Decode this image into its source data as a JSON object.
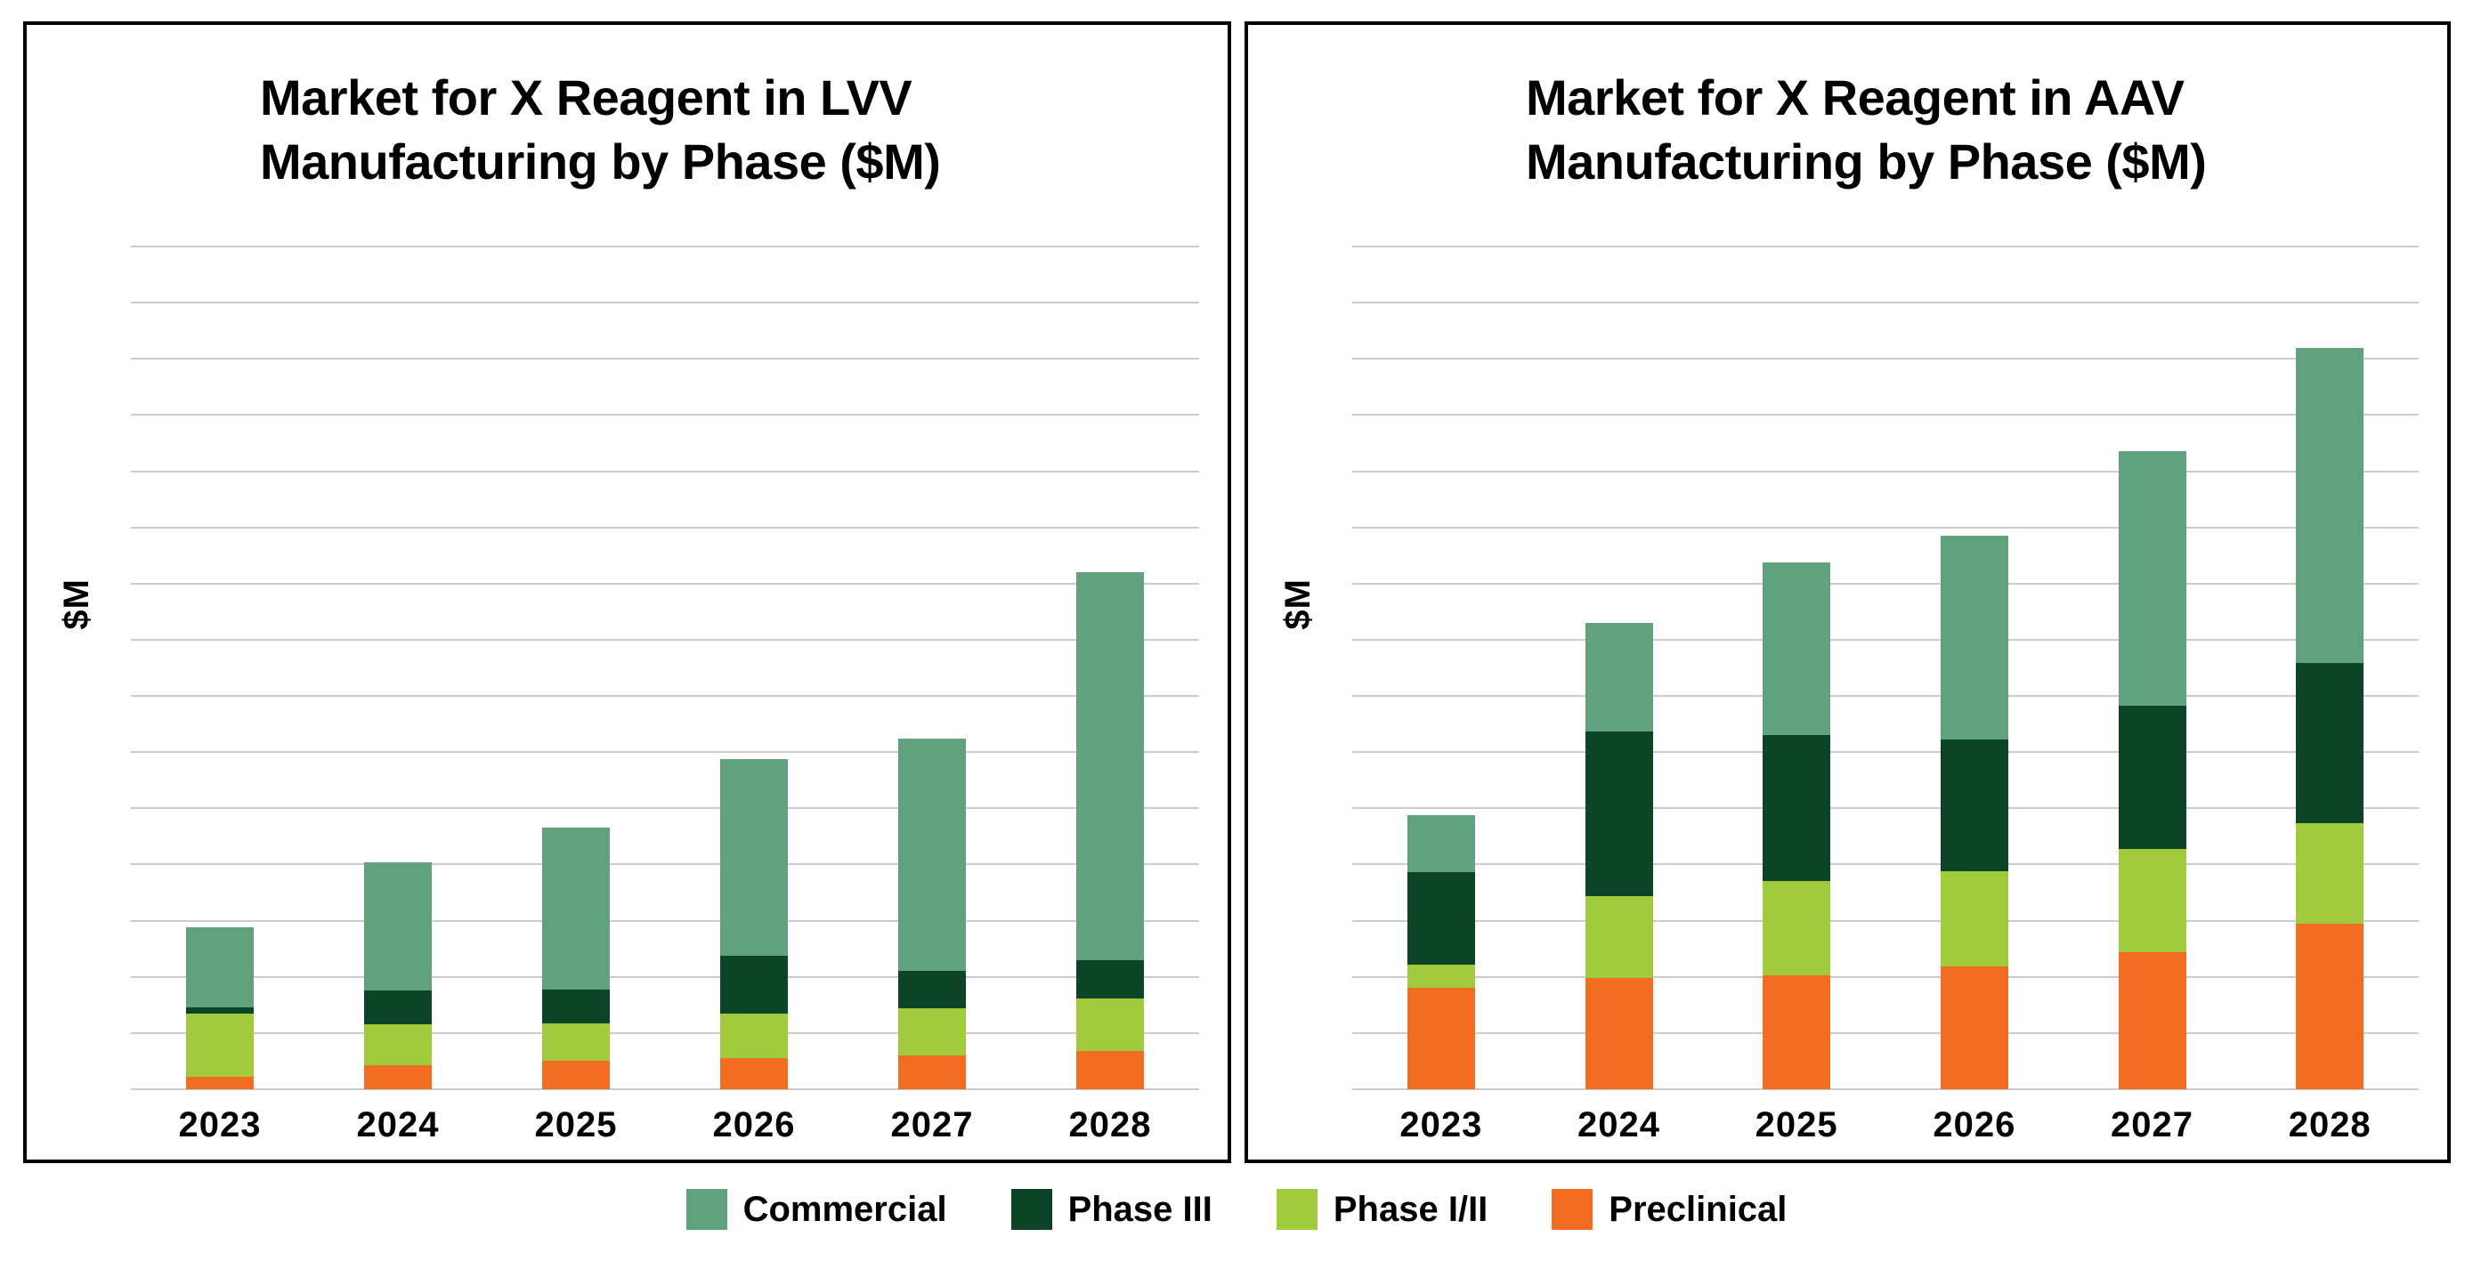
{
  "page": {
    "background": "#FFFFFF",
    "description": "Two stacked bar charts side by side with a shared legend below"
  },
  "chart_data": [
    {
      "type": "bar",
      "stacked": true,
      "title": "Market for X Reagent in LVV Manufacturing by Phase ($M)",
      "title_lines": [
        "Market for X Reagent in LVV",
        "Manufacturing by Phase ($M)"
      ],
      "ylabel": "$M",
      "xlabel": "",
      "categories": [
        "2023",
        "2024",
        "2025",
        "2026",
        "2027",
        "2028"
      ],
      "series": [
        {
          "name": "Preclinical",
          "color": "#F26D22",
          "values": [
            11,
            21,
            25,
            28,
            30,
            34
          ]
        },
        {
          "name": "Phase I/II",
          "color": "#A0CB3D",
          "values": [
            56,
            37,
            34,
            39,
            42,
            47
          ]
        },
        {
          "name": "Phase III",
          "color": "#0C4428",
          "values": [
            6,
            30,
            30,
            52,
            33,
            34
          ]
        },
        {
          "name": "Commercial",
          "color": "#60A17E",
          "values": [
            71,
            114,
            144,
            175,
            207,
            345
          ]
        }
      ],
      "totals": [
        144,
        202,
        233,
        294,
        312,
        460
      ],
      "ylim": [
        0,
        750
      ],
      "gridline_intervals": 15,
      "grid": true,
      "y_tick_labels_visible": false,
      "legend_position": "shared-bottom"
    },
    {
      "type": "bar",
      "stacked": true,
      "title": "Market for X Reagent in AAV Manufacturing by Phase ($M)",
      "title_lines": [
        "Market for X Reagent in AAV",
        "Manufacturing by Phase ($M)"
      ],
      "ylabel": "$M",
      "xlabel": "",
      "categories": [
        "2023",
        "2024",
        "2025",
        "2026",
        "2027",
        "2028"
      ],
      "series": [
        {
          "name": "Preclinical",
          "color": "#F26D22",
          "values": [
            90,
            99,
            101,
            109,
            122,
            147
          ]
        },
        {
          "name": "Phase I/II",
          "color": "#A0CB3D",
          "values": [
            21,
            73,
            84,
            85,
            92,
            90
          ]
        },
        {
          "name": "Phase III",
          "color": "#0C4428",
          "values": [
            82,
            146,
            130,
            117,
            127,
            142
          ]
        },
        {
          "name": "Commercial",
          "color": "#60A17E",
          "values": [
            51,
            97,
            154,
            182,
            227,
            281
          ]
        }
      ],
      "totals": [
        244,
        415,
        469,
        493,
        568,
        660
      ],
      "ylim": [
        0,
        750
      ],
      "gridline_intervals": 15,
      "grid": true,
      "y_tick_labels_visible": false,
      "legend_position": "shared-bottom"
    }
  ],
  "legend": {
    "items": [
      {
        "label": "Commercial",
        "color": "#60A17E"
      },
      {
        "label": "Phase III",
        "color": "#0C4428"
      },
      {
        "label": "Phase I/II",
        "color": "#A0CB3D"
      },
      {
        "label": "Preclinical",
        "color": "#F26D22"
      }
    ]
  },
  "colors": {
    "grid": "#CCCCCC",
    "panel_border": "#000000",
    "text": "#000000",
    "background": "#FFFFFF"
  }
}
